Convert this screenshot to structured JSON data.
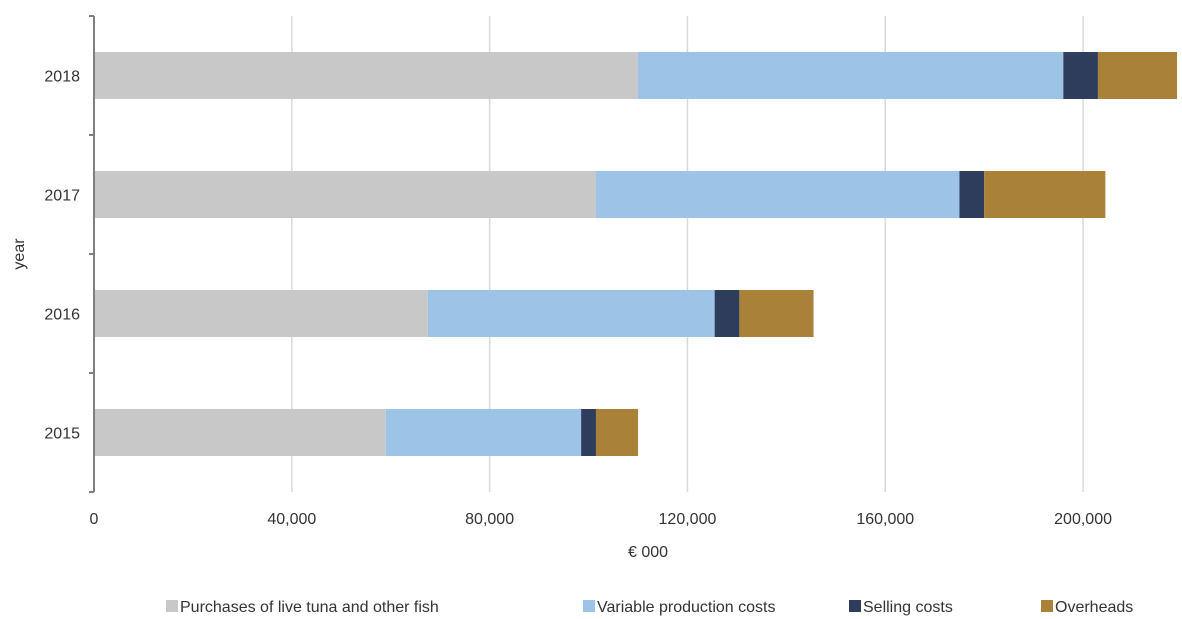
{
  "chart_data": {
    "type": "bar",
    "orientation": "horizontal",
    "stacked": true,
    "title": "",
    "xlabel": "€ 000",
    "ylabel": "year",
    "xlim": [
      0,
      220000
    ],
    "x_ticks": [
      0,
      40000,
      80000,
      120000,
      160000,
      200000
    ],
    "x_tick_labels": [
      "0",
      "40,000",
      "80,000",
      "120,000",
      "160,000",
      "200,000"
    ],
    "categories": [
      "2015",
      "2016",
      "2017",
      "2018"
    ],
    "grid": "vertical",
    "legend_position": "bottom",
    "series": [
      {
        "name": "Purchases of live tuna and other fish",
        "color": "#c8c8c8",
        "values": [
          59000,
          67500,
          101500,
          110000
        ]
      },
      {
        "name": "Variable production costs",
        "color": "#9dc3e6",
        "values": [
          39500,
          58000,
          73500,
          86000
        ]
      },
      {
        "name": "Selling costs",
        "color": "#2e3d5c",
        "values": [
          3000,
          5000,
          5000,
          7000
        ]
      },
      {
        "name": "Overheads",
        "color": "#a98139",
        "values": [
          8500,
          15000,
          24500,
          16000
        ]
      }
    ]
  }
}
